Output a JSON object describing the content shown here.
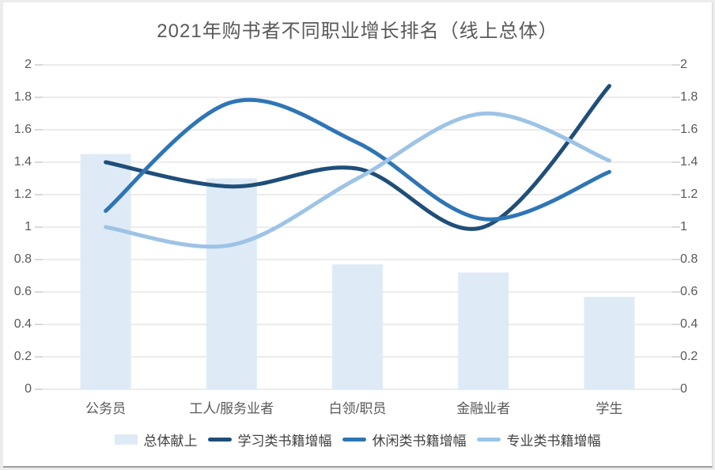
{
  "title": "2021年购书者不同职业增长排名（线上总体）",
  "colors": {
    "page_background": "#ececec",
    "card_background": "#ffffff",
    "grid": "#d9d9d9",
    "axis_text": "#595959",
    "title_text": "#595959",
    "legend_text": "#404040"
  },
  "chart_data": {
    "type": "combo",
    "title": "2021年购书者不同职业增长排名（线上总体）",
    "categories": [
      "公务员",
      "工人/服务业者",
      "白领/职员",
      "金融业者",
      "学生"
    ],
    "series": [
      {
        "name": "总体献上",
        "type": "bar",
        "color": "#DEEBF7",
        "values": [
          1.45,
          1.3,
          0.77,
          0.72,
          0.57
        ]
      },
      {
        "name": "学习类书籍增幅",
        "type": "line",
        "color": "#1F4E79",
        "values": [
          1.4,
          1.25,
          1.36,
          1.0,
          1.87
        ]
      },
      {
        "name": "休闲类书籍增幅",
        "type": "line",
        "color": "#2E75B6",
        "values": [
          1.1,
          1.77,
          1.52,
          1.05,
          1.34
        ]
      },
      {
        "name": "专业类书籍增幅",
        "type": "line",
        "color": "#9DC3E6",
        "values": [
          1.0,
          0.89,
          1.3,
          1.7,
          1.41
        ]
      }
    ],
    "y_axis": {
      "min": 0,
      "max": 2,
      "step": 0.2,
      "tick_labels": [
        "0",
        "0.2",
        "0.4",
        "0.6",
        "0.8",
        "1",
        "1.2",
        "1.4",
        "1.6",
        "1.8",
        "2"
      ],
      "sides": [
        "left",
        "right"
      ]
    },
    "xlabel": "",
    "ylabel": "",
    "grid": true,
    "legend_position": "bottom"
  }
}
